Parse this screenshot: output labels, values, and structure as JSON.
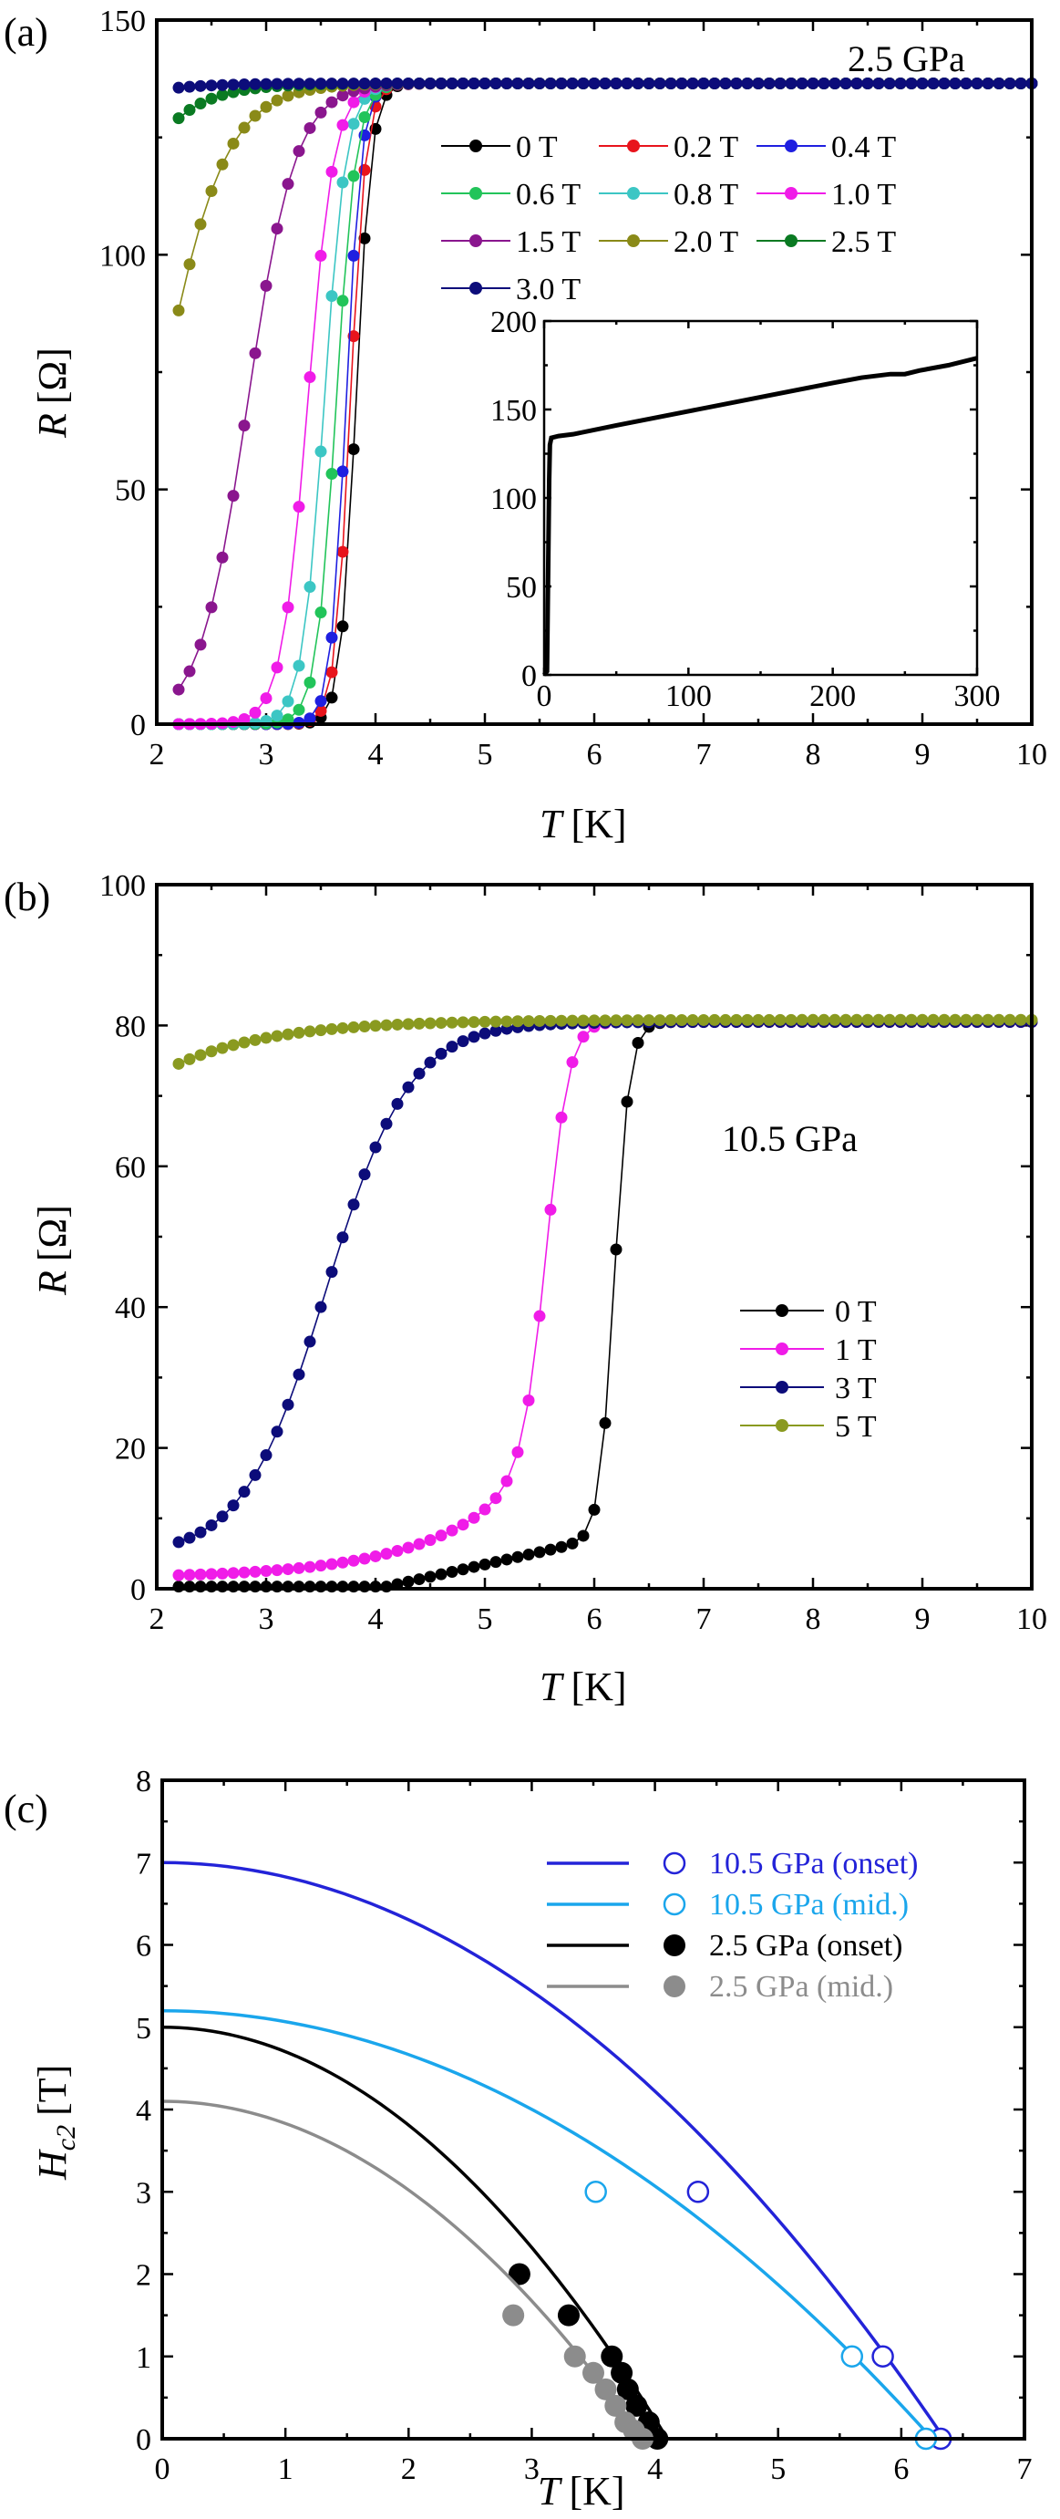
{
  "chart_data": [
    {
      "panel": "(a)",
      "type": "line",
      "annotation": "2.5 GPa",
      "xlabel": "T",
      "xunit": "[K]",
      "ylabel": "R",
      "yunit": "[Ω]",
      "xlim": [
        2,
        10
      ],
      "ylim": [
        0,
        150
      ],
      "xticks": [
        2,
        3,
        4,
        5,
        6,
        7,
        8,
        9,
        10
      ],
      "yticks": [
        0,
        50,
        100,
        150
      ],
      "rn": 136.5,
      "series": [
        {
          "name": "0 T",
          "color": "#000000",
          "tc": 3.82,
          "w": 0.07
        },
        {
          "name": "0.2 T",
          "color": "#e8141c",
          "tc": 3.77,
          "w": 0.07
        },
        {
          "name": "0.4 T",
          "color": "#1f1fe0",
          "tc": 3.73,
          "w": 0.07
        },
        {
          "name": "0.6 T",
          "color": "#22c45a",
          "tc": 3.64,
          "w": 0.09
        },
        {
          "name": "0.8 T",
          "color": "#3cc6c4",
          "tc": 3.53,
          "w": 0.1
        },
        {
          "name": "1.0 T",
          "color": "#f01ce8",
          "tc": 3.38,
          "w": 0.12
        },
        {
          "name": "1.5 T",
          "color": "#8a168e",
          "tc": 2.83,
          "w": 0.22
        },
        {
          "name": "2.0 T",
          "color": "#8a8a18",
          "tc": 2.02,
          "w": 0.3
        },
        {
          "name": "2.5 T",
          "color": "#0a7a22",
          "tc": 1.2,
          "w": 0.35
        },
        {
          "name": "3.0 T",
          "color": "#0c0c7a",
          "tc": 0.2,
          "w": 0.4
        }
      ],
      "inset": {
        "type": "line",
        "xlim": [
          0,
          300
        ],
        "ylim": [
          0,
          200
        ],
        "xticks": [
          0,
          100,
          200,
          300
        ],
        "yticks": [
          0,
          50,
          100,
          150,
          200
        ],
        "x": [
          0,
          2,
          3.5,
          4,
          5,
          10,
          20,
          50,
          100,
          150,
          200,
          220,
          240,
          250,
          260,
          280,
          300
        ],
        "values": [
          0,
          2,
          110,
          130,
          134,
          135,
          136,
          141,
          149,
          157,
          165,
          168,
          170,
          170,
          172,
          175,
          179
        ]
      }
    },
    {
      "panel": "(b)",
      "type": "line",
      "annotation": "10.5 GPa",
      "xlabel": "T",
      "xunit": "[K]",
      "ylabel": "R",
      "yunit": "[Ω]",
      "xlim": [
        2,
        10
      ],
      "ylim": [
        0,
        100
      ],
      "xticks": [
        2,
        3,
        4,
        5,
        6,
        7,
        8,
        9,
        10
      ],
      "yticks": [
        0,
        20,
        40,
        60,
        80,
        100
      ],
      "series": [
        {
          "name": "0 T",
          "color": "#000000",
          "kind": "zero"
        },
        {
          "name": "1 T",
          "color": "#f01ce8",
          "kind": "one"
        },
        {
          "name": "3 T",
          "color": "#0c0c7a",
          "kind": "three"
        },
        {
          "name": "5 T",
          "color": "#8a9a20",
          "kind": "five"
        }
      ]
    },
    {
      "panel": "(c)",
      "type": "scatter",
      "xlabel": "T",
      "xunit": "[K]",
      "ylabel": "H",
      "ysub": "c2",
      "yunit": "[T]",
      "xlim": [
        0,
        7
      ],
      "ylim": [
        0,
        8
      ],
      "xticks": [
        0,
        1,
        2,
        3,
        4,
        5,
        6,
        7
      ],
      "yticks": [
        0,
        1,
        2,
        3,
        4,
        5,
        6,
        7,
        8
      ],
      "series": [
        {
          "name": "10.5 GPa (onset)",
          "color": "#2323d8",
          "hollow": true,
          "H0": 7.0,
          "Tc": 6.35,
          "x": [
            4.35,
            5.85,
            6.32
          ],
          "y": [
            3.0,
            1.0,
            0.0
          ]
        },
        {
          "name": "10.5 GPa (mid.)",
          "color": "#1aa6ec",
          "hollow": true,
          "H0": 5.2,
          "Tc": 6.25,
          "x": [
            3.52,
            5.6,
            6.2
          ],
          "y": [
            3.0,
            1.0,
            0.0
          ]
        },
        {
          "name": "2.5 GPa (onset)",
          "color": "#000000",
          "hollow": false,
          "H0": 5.0,
          "Tc": 4.1,
          "x": [
            2.9,
            3.3,
            3.65,
            3.73,
            3.78,
            3.85,
            3.95,
            4.02
          ],
          "y": [
            2.0,
            1.5,
            1.0,
            0.8,
            0.6,
            0.4,
            0.2,
            0.0
          ]
        },
        {
          "name": "2.5 GPa (mid.)",
          "color": "#8c8c8c",
          "hollow": false,
          "H0": 4.1,
          "Tc": 3.9,
          "x": [
            2.85,
            3.35,
            3.5,
            3.6,
            3.68,
            3.76,
            3.83,
            3.9
          ],
          "y": [
            1.5,
            1.0,
            0.8,
            0.6,
            0.4,
            0.2,
            0.1,
            0.0
          ]
        }
      ]
    }
  ]
}
